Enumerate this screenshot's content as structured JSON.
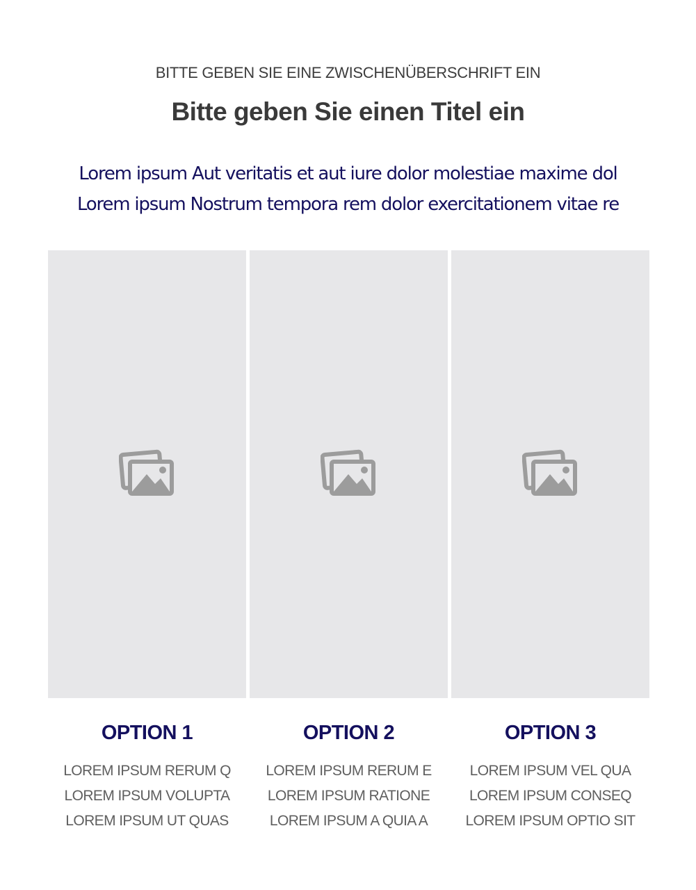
{
  "header": {
    "subtitle": "BITTE GEBEN SIE EINE ZWISCHENÜBERSCHRIFT EIN",
    "title": "Bitte geben Sie einen Titel ein",
    "intro_lines": [
      "Lorem ipsum Aut veritatis et aut iure dolor molestiae maxime dol",
      "Lorem ipsum Nostrum tempora rem dolor exercitationem vitae re"
    ]
  },
  "colors": {
    "accent": "#14105e",
    "placeholder_bg": "#e7e7e9",
    "icon": "#9c9c9c"
  },
  "options": [
    {
      "icon": "image-placeholder-icon",
      "title": "OPTION 1",
      "lines": [
        "LOREM IPSUM RERUM Q",
        "LOREM IPSUM VOLUPTA",
        "LOREM IPSUM UT QUAS"
      ]
    },
    {
      "icon": "image-placeholder-icon",
      "title": "OPTION 2",
      "lines": [
        "LOREM IPSUM RERUM E",
        "LOREM IPSUM RATIONE",
        "LOREM IPSUM A QUIA A"
      ]
    },
    {
      "icon": "image-placeholder-icon",
      "title": "OPTION 3",
      "lines": [
        "LOREM IPSUM VEL QUA",
        "LOREM IPSUM CONSEQ",
        "LOREM IPSUM OPTIO SIT"
      ]
    }
  ]
}
